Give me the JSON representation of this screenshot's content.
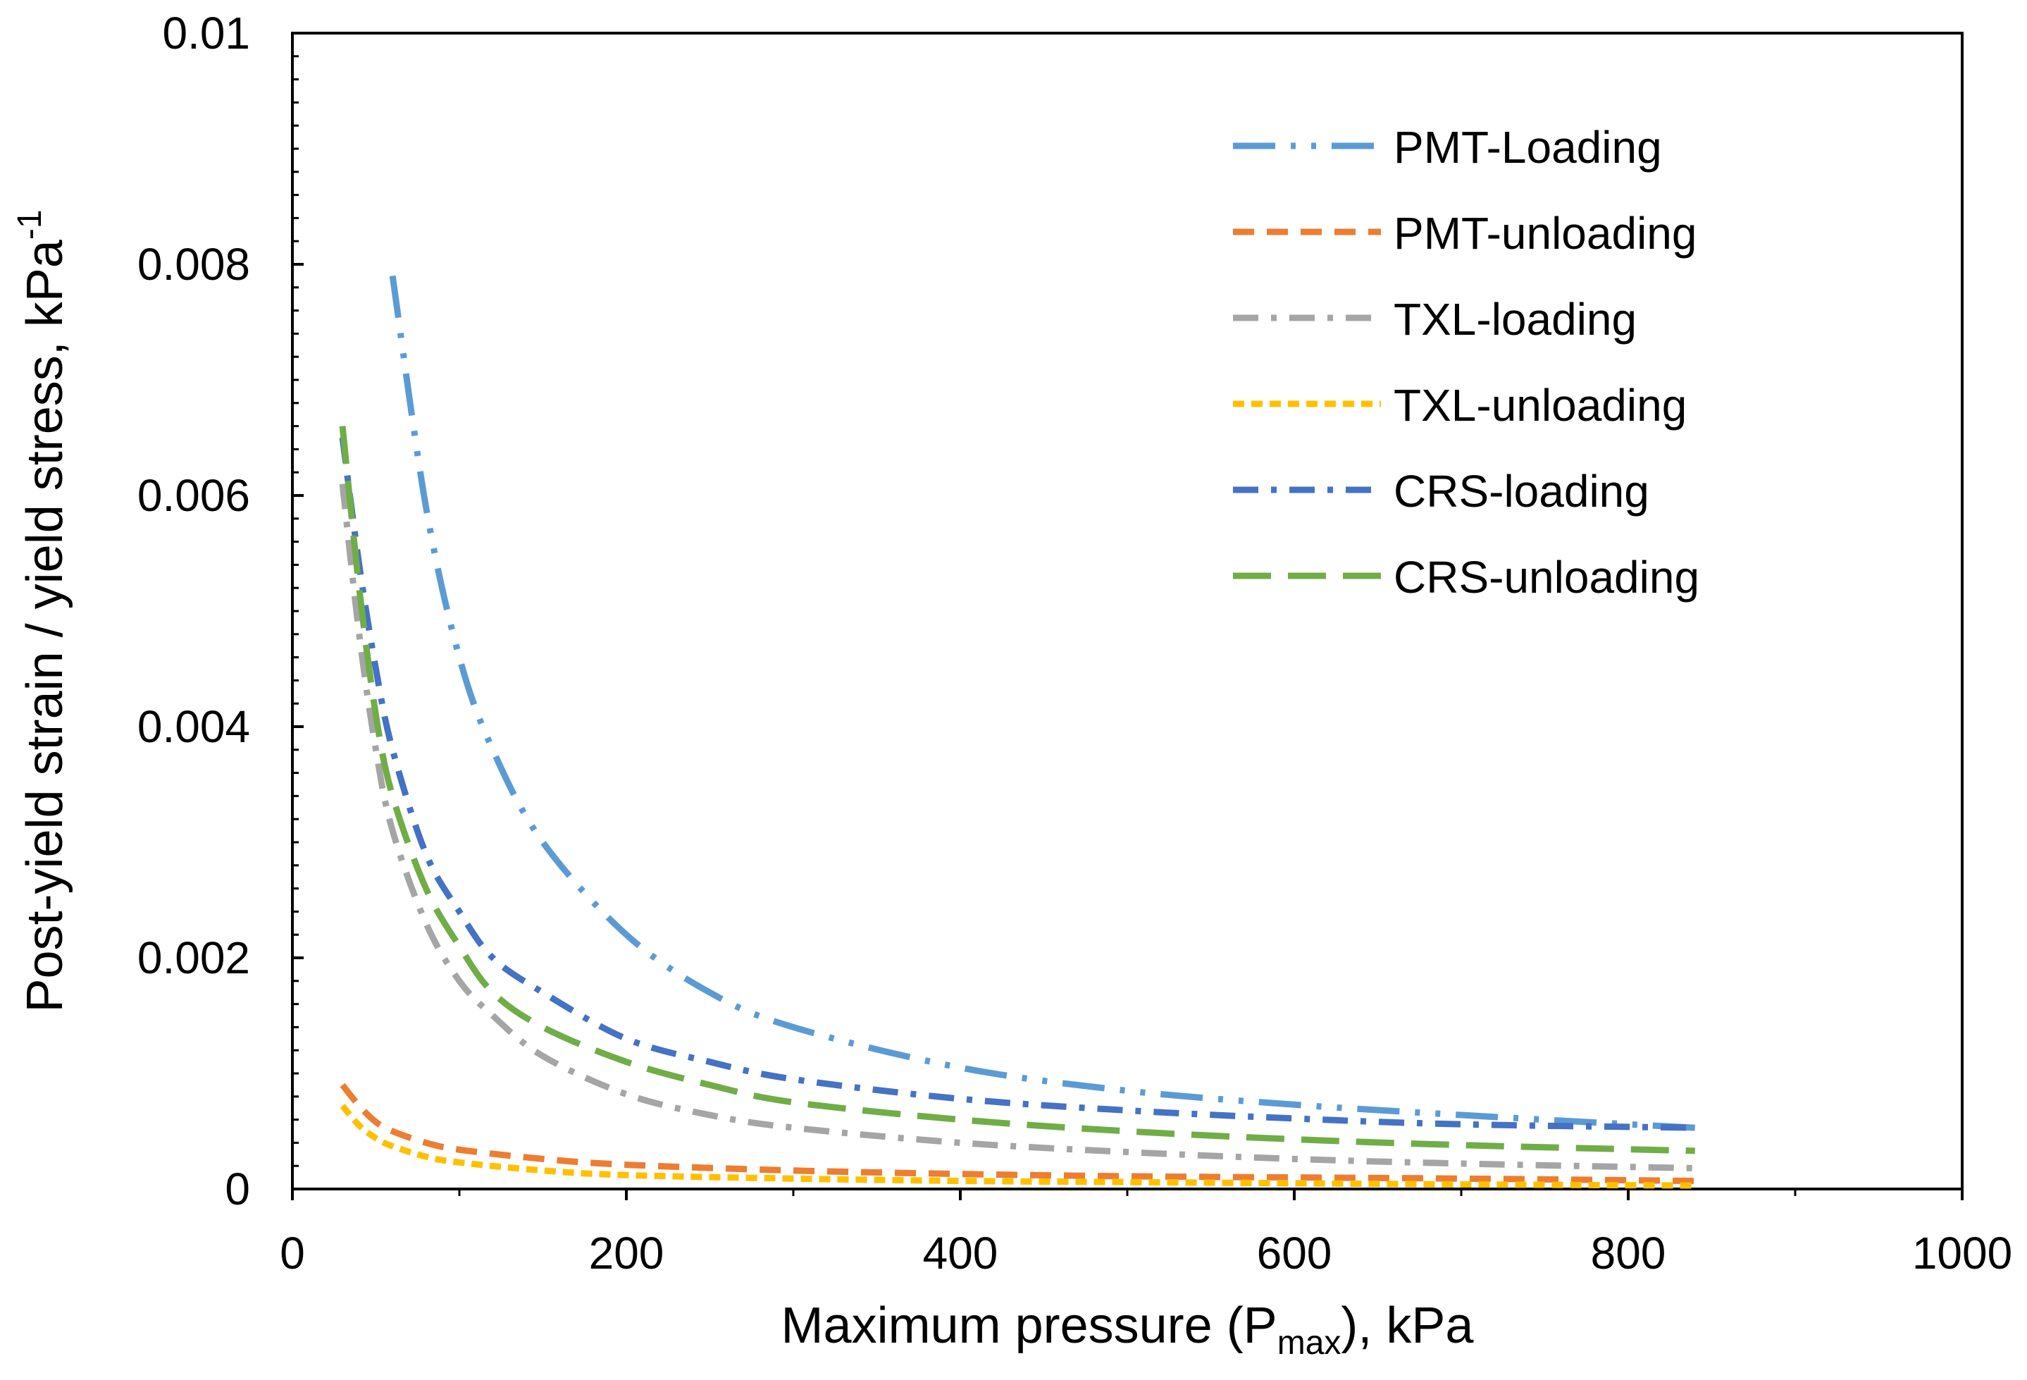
{
  "chart_data": {
    "type": "line",
    "title": "",
    "xlabel": {
      "main": "Maximum pressure (P",
      "sub": "max",
      "tail": "), kPa"
    },
    "ylabel": {
      "main": "Post-yield strain / yield stress, kPa",
      "sup": "-1"
    },
    "xlim": [
      0,
      1000
    ],
    "ylim": [
      0,
      0.01
    ],
    "x_ticks": [
      0,
      200,
      400,
      600,
      800,
      1000
    ],
    "x_tick_labels": [
      "0",
      "200",
      "400",
      "600",
      "800",
      "1000"
    ],
    "y_ticks": [
      0,
      0.002,
      0.004,
      0.006,
      0.008,
      0.01
    ],
    "y_tick_labels": [
      "0",
      "0.002",
      "0.004",
      "0.006",
      "0.008",
      "0.01"
    ],
    "grid": false,
    "legend_position": "top-right",
    "series": [
      {
        "name": "PMT-Loading",
        "color": "#5B9BD5",
        "dash": "long-dash-dot-dot",
        "x": [
          60,
          80,
          100,
          120,
          150,
          200,
          250,
          300,
          400,
          500,
          600,
          700,
          800,
          840
        ],
        "y": [
          0.0079,
          0.0059,
          0.0046,
          0.0038,
          0.003,
          0.0022,
          0.0017,
          0.0014,
          0.00105,
          0.00085,
          0.00073,
          0.00064,
          0.00056,
          0.00053
        ]
      },
      {
        "name": "PMT-unloading",
        "color": "#ED7D31",
        "dash": "dash",
        "x": [
          30,
          40,
          50,
          60,
          80,
          100,
          150,
          200,
          300,
          400,
          500,
          600,
          700,
          840
        ],
        "y": [
          0.0009,
          0.00072,
          0.00058,
          0.0005,
          0.0004,
          0.00034,
          0.00026,
          0.00021,
          0.00016,
          0.00013,
          0.00011,
          0.0001,
          9e-05,
          7e-05
        ]
      },
      {
        "name": "TXL-loading",
        "color": "#A5A5A5",
        "dash": "dash-dot",
        "x": [
          30,
          40,
          50,
          60,
          80,
          100,
          120,
          150,
          200,
          250,
          300,
          400,
          500,
          600,
          700,
          840
        ],
        "y": [
          0.0061,
          0.0048,
          0.0038,
          0.0031,
          0.0023,
          0.0018,
          0.0015,
          0.00115,
          0.00082,
          0.00064,
          0.00053,
          0.0004,
          0.00032,
          0.00026,
          0.00022,
          0.00018
        ]
      },
      {
        "name": "TXL-unloading",
        "color": "#FFC000",
        "dash": "short-dash",
        "x": [
          30,
          40,
          50,
          60,
          80,
          100,
          150,
          200,
          300,
          400,
          500,
          600,
          700,
          840
        ],
        "y": [
          0.00072,
          0.00055,
          0.00044,
          0.00037,
          0.00028,
          0.00023,
          0.00016,
          0.00012,
          9e-05,
          7e-05,
          6e-05,
          5e-05,
          4e-05,
          3e-05
        ]
      },
      {
        "name": "CRS-loading",
        "color": "#4472C4",
        "dash": "dash-dot",
        "x": [
          30,
          40,
          50,
          60,
          80,
          100,
          120,
          150,
          200,
          250,
          300,
          400,
          500,
          600,
          700,
          840
        ],
        "y": [
          0.0065,
          0.0054,
          0.0045,
          0.0038,
          0.0029,
          0.0024,
          0.002,
          0.0017,
          0.0013,
          0.0011,
          0.00095,
          0.00078,
          0.00068,
          0.00061,
          0.00056,
          0.00053
        ]
      },
      {
        "name": "CRS-unloading",
        "color": "#70AD47",
        "dash": "long-dash",
        "x": [
          30,
          40,
          50,
          60,
          80,
          100,
          120,
          150,
          200,
          250,
          300,
          400,
          500,
          600,
          700,
          840
        ],
        "y": [
          0.0066,
          0.0052,
          0.0041,
          0.0034,
          0.0026,
          0.0021,
          0.0017,
          0.0014,
          0.0011,
          0.0009,
          0.00075,
          0.0006,
          0.0005,
          0.00043,
          0.00038,
          0.00033
        ]
      }
    ]
  }
}
